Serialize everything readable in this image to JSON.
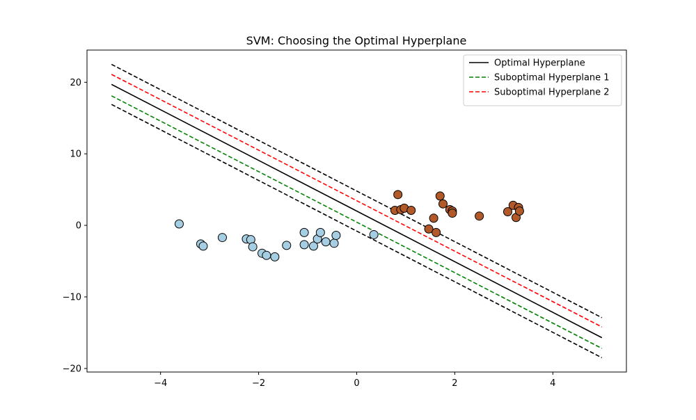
{
  "chart_data": {
    "type": "scatter",
    "title": "SVM: Choosing the Optimal Hyperplane",
    "xlabel": "",
    "ylabel": "",
    "xlim": [
      -5.5,
      5.5
    ],
    "ylim": [
      -20.5,
      24.5
    ],
    "x_ticks": [
      -4,
      -2,
      0,
      2,
      4
    ],
    "y_ticks": [
      -20,
      -10,
      0,
      10,
      20
    ],
    "x_tick_labels": [
      "−4",
      "−2",
      "0",
      "2",
      "4"
    ],
    "y_tick_labels": [
      "−20",
      "−10",
      "0",
      "10",
      "20"
    ],
    "grid": false,
    "legend_position": "top-right",
    "lines": [
      {
        "name": "Optimal Hyperplane",
        "x": [
          -5,
          5
        ],
        "y": [
          19.7,
          -15.7
        ],
        "color": "#000000",
        "style": "solid",
        "in_legend": true
      },
      {
        "name": "Suboptimal Hyperplane 1",
        "x": [
          -5,
          5
        ],
        "y": [
          18.1,
          -17.2
        ],
        "color": "#008000",
        "style": "dashed",
        "in_legend": true
      },
      {
        "name": "Suboptimal Hyperplane 2",
        "x": [
          -5,
          5
        ],
        "y": [
          21.1,
          -14.2
        ],
        "color": "#ff0000",
        "style": "dashed",
        "in_legend": true
      },
      {
        "name": "",
        "x": [
          -5,
          5
        ],
        "y": [
          22.5,
          -12.9
        ],
        "color": "#000000",
        "style": "dashed",
        "in_legend": false
      },
      {
        "name": "",
        "x": [
          -5,
          5
        ],
        "y": [
          16.9,
          -18.5
        ],
        "color": "#000000",
        "style": "dashed",
        "in_legend": false
      }
    ],
    "series": [
      {
        "name": "",
        "color": "#a6cee3",
        "points": [
          [
            -3.62,
            0.2
          ],
          [
            -3.18,
            -2.6
          ],
          [
            -3.13,
            -2.9
          ],
          [
            -2.74,
            -1.7
          ],
          [
            -2.25,
            -1.9
          ],
          [
            -2.16,
            -2.0
          ],
          [
            -2.12,
            -3.0
          ],
          [
            -1.93,
            -3.9
          ],
          [
            -1.84,
            -4.2
          ],
          [
            -1.67,
            -4.4
          ],
          [
            -1.43,
            -2.8
          ],
          [
            -1.07,
            -1.0
          ],
          [
            -1.07,
            -2.7
          ],
          [
            -0.88,
            -2.9
          ],
          [
            -0.8,
            -1.9
          ],
          [
            -0.74,
            -1.0
          ],
          [
            -0.63,
            -2.3
          ],
          [
            -0.46,
            -2.5
          ],
          [
            -0.42,
            -1.4
          ],
          [
            0.35,
            -1.3
          ]
        ]
      },
      {
        "name": "",
        "color": "#b15928",
        "points": [
          [
            0.78,
            2.1
          ],
          [
            0.84,
            4.3
          ],
          [
            0.9,
            2.2
          ],
          [
            0.97,
            2.4
          ],
          [
            1.11,
            2.1
          ],
          [
            1.47,
            -0.5
          ],
          [
            1.57,
            1.0
          ],
          [
            1.62,
            -1.0
          ],
          [
            1.7,
            4.1
          ],
          [
            1.76,
            3.0
          ],
          [
            1.9,
            2.2
          ],
          [
            1.95,
            2.0
          ],
          [
            1.95,
            1.7
          ],
          [
            2.5,
            1.3
          ],
          [
            3.08,
            1.9
          ],
          [
            3.19,
            2.8
          ],
          [
            3.25,
            1.1
          ],
          [
            3.3,
            2.5
          ],
          [
            3.32,
            2.0
          ]
        ]
      }
    ]
  }
}
